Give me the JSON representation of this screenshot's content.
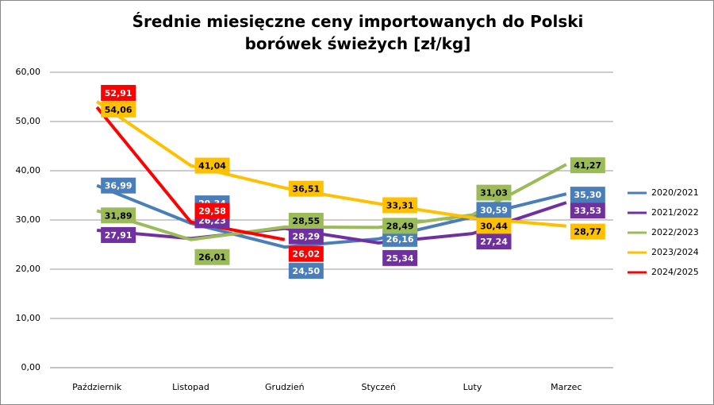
{
  "chart_data": {
    "type": "line",
    "title": "Średnie miesięczne ceny importowanych do Polski borówek świeżych [zł/kg]",
    "categories": [
      "Październik",
      "Listopad",
      "Grudzień",
      "Styczeń",
      "Luty",
      "Marzec"
    ],
    "series": [
      {
        "name": "2020/2021",
        "color": "#4a7ebb",
        "values": [
          36.99,
          29.34,
          24.5,
          26.16,
          30.59,
          35.3
        ],
        "value_labels": [
          "36,99",
          "29,34",
          "24,50",
          "26,16",
          "30,59",
          "35,30"
        ]
      },
      {
        "name": "2021/2022",
        "color": "#7030a0",
        "values": [
          27.91,
          26.23,
          28.29,
          25.34,
          27.24,
          33.53
        ],
        "value_labels": [
          "27,91",
          "26,23",
          "28,29",
          "25,34",
          "27,24",
          "33,53"
        ]
      },
      {
        "name": "2022/2023",
        "color": "#9bbb59",
        "values": [
          31.89,
          26.01,
          28.55,
          28.49,
          31.03,
          41.27
        ],
        "value_labels": [
          "31,89",
          "26,01",
          "28,55",
          "28,49",
          "31,03",
          "41,27"
        ]
      },
      {
        "name": "2023/2024",
        "color": "#ffc000",
        "values": [
          54.06,
          41.04,
          36.51,
          33.31,
          30.44,
          28.77
        ],
        "value_labels": [
          "54,06",
          "41,04",
          "36,51",
          "33,31",
          "30,44",
          "28,77"
        ]
      },
      {
        "name": "2024/2025",
        "color": "#ff0000",
        "values": [
          52.91,
          29.58,
          26.02,
          null,
          null,
          null
        ],
        "value_labels": [
          "52,91",
          "29,58",
          "26,02",
          null,
          null,
          null
        ]
      }
    ],
    "ylim": [
      0,
      60
    ],
    "yticks": [
      {
        "value": 0,
        "label": "0,00"
      },
      {
        "value": 10,
        "label": "10,00"
      },
      {
        "value": 20,
        "label": "20,00"
      },
      {
        "value": 30,
        "label": "30,00"
      },
      {
        "value": 40,
        "label": "40,00"
      },
      {
        "value": 50,
        "label": "50,00"
      },
      {
        "value": 60,
        "label": "60,00"
      }
    ],
    "grid": true,
    "legend": "right"
  }
}
